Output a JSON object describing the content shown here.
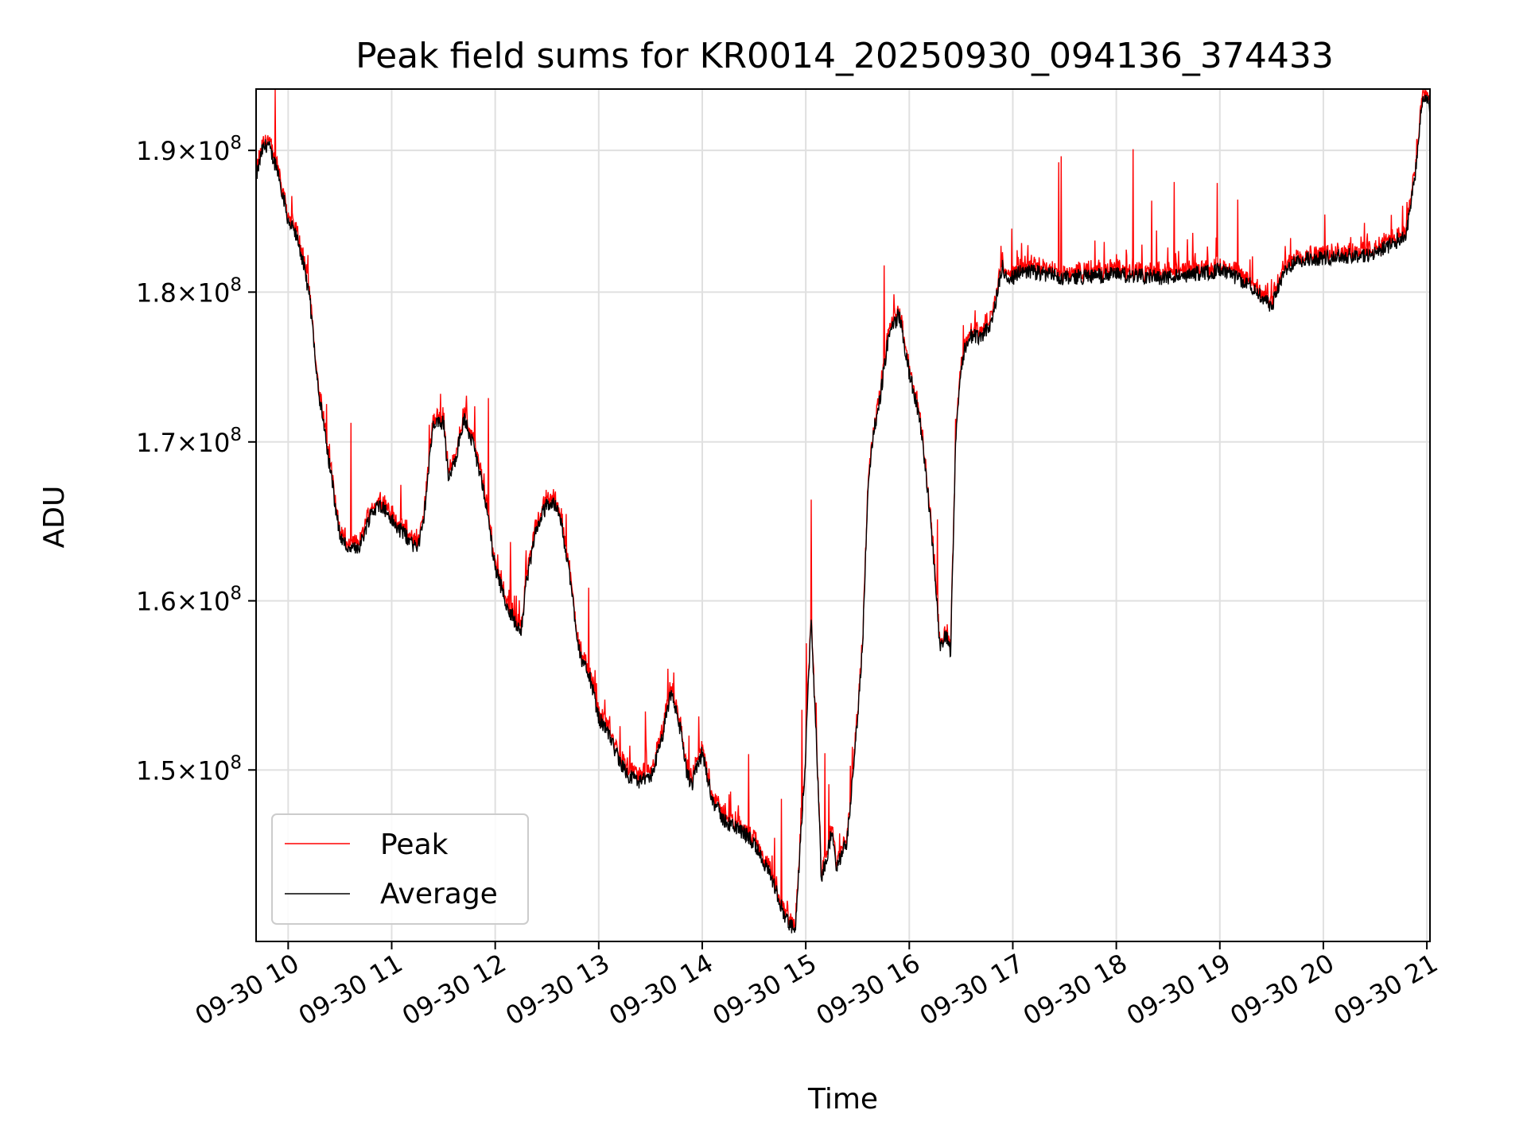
{
  "chart_data": {
    "type": "line",
    "title": "Peak field sums for KR0014_20250930_094136_374433",
    "xlabel": "Time",
    "ylabel": "ADU",
    "x_unit": "hours (2025-09-30, decimal hour of day)",
    "xlim": [
      9.69,
      21.03
    ],
    "ylim": [
      140500000,
      194500000
    ],
    "y_scale": "log",
    "grid": true,
    "legend_position": "lower-left",
    "x_ticks": [
      {
        "value": 10,
        "label": "09-30 10"
      },
      {
        "value": 11,
        "label": "09-30 11"
      },
      {
        "value": 12,
        "label": "09-30 12"
      },
      {
        "value": 13,
        "label": "09-30 13"
      },
      {
        "value": 14,
        "label": "09-30 14"
      },
      {
        "value": 15,
        "label": "09-30 15"
      },
      {
        "value": 16,
        "label": "09-30 16"
      },
      {
        "value": 17,
        "label": "09-30 17"
      },
      {
        "value": 18,
        "label": "09-30 18"
      },
      {
        "value": 19,
        "label": "09-30 19"
      },
      {
        "value": 20,
        "label": "09-30 20"
      },
      {
        "value": 21,
        "label": "09-30 21"
      }
    ],
    "y_ticks": [
      {
        "value": 150000000,
        "mantissa": "1.5",
        "exp": "8"
      },
      {
        "value": 160000000,
        "mantissa": "1.6",
        "exp": "8"
      },
      {
        "value": 170000000,
        "mantissa": "1.7",
        "exp": "8"
      },
      {
        "value": 180000000,
        "mantissa": "1.8",
        "exp": "8"
      },
      {
        "value": 190000000,
        "mantissa": "1.9",
        "exp": "8"
      }
    ],
    "y_tick_mult": "×10",
    "series": [
      {
        "name": "Peak",
        "color": "#ff0000"
      },
      {
        "name": "Average",
        "color": "#000000"
      }
    ],
    "average_keypoints_hours": [
      9.69,
      9.75,
      9.8,
      9.9,
      10.0,
      10.1,
      10.2,
      10.25,
      10.3,
      10.4,
      10.5,
      10.6,
      10.7,
      10.8,
      10.9,
      11.0,
      11.05,
      11.1,
      11.2,
      11.25,
      11.3,
      11.4,
      11.5,
      11.55,
      11.6,
      11.7,
      11.8,
      11.9,
      12.0,
      12.1,
      12.2,
      12.25,
      12.3,
      12.4,
      12.5,
      12.6,
      12.7,
      12.8,
      12.85,
      12.9,
      13.0,
      13.1,
      13.2,
      13.3,
      13.4,
      13.5,
      13.6,
      13.7,
      13.8,
      13.85,
      13.9,
      14.0,
      14.1,
      14.2,
      14.3,
      14.4,
      14.5,
      14.6,
      14.7,
      14.8,
      14.9,
      15.0,
      15.05,
      15.1,
      15.15,
      15.2,
      15.25,
      15.3,
      15.4,
      15.5,
      15.55,
      15.6,
      15.65,
      15.7,
      15.8,
      15.9,
      16.0,
      16.1,
      16.2,
      16.3,
      16.35,
      16.4,
      16.45,
      16.5,
      16.55,
      16.6,
      16.7,
      16.8,
      16.9,
      16.95,
      17.0,
      17.1,
      17.5,
      18.0,
      18.5,
      19.0,
      19.3,
      19.5,
      19.6,
      19.7,
      19.8,
      19.9,
      20.0,
      20.5,
      20.8,
      20.9,
      20.95,
      21.0,
      21.03
    ],
    "average_keypoints_adu": [
      188000000,
      190000000,
      190500000,
      188500000,
      185000000,
      183500000,
      180000000,
      176500000,
      173000000,
      168500000,
      164000000,
      163000000,
      163500000,
      165500000,
      166000000,
      165000000,
      164500000,
      164300000,
      163500000,
      163300000,
      164500000,
      171000000,
      171300000,
      167500000,
      168500000,
      171500000,
      169500000,
      166500000,
      162000000,
      160000000,
      158500000,
      158300000,
      161000000,
      164500000,
      166000000,
      166000000,
      162500000,
      157500000,
      156000000,
      155800000,
      153000000,
      152000000,
      150500000,
      149600000,
      149300000,
      149500000,
      151500000,
      154500000,
      152000000,
      149800000,
      149200000,
      151000000,
      148300000,
      147200000,
      146800000,
      146500000,
      145800000,
      144800000,
      143500000,
      141800000,
      141000000,
      151000000,
      159000000,
      152000000,
      144000000,
      145000000,
      146500000,
      144500000,
      146000000,
      153000000,
      157500000,
      167000000,
      170500000,
      172000000,
      177000000,
      178500000,
      174500000,
      171500000,
      165500000,
      157000000,
      158000000,
      157000000,
      170500000,
      175000000,
      176500000,
      177000000,
      177000000,
      178000000,
      182000000,
      180500000,
      181000000,
      181500000,
      181000000,
      181200000,
      181000000,
      181500000,
      180500000,
      179000000,
      181000000,
      182000000,
      182200000,
      182300000,
      182400000,
      182600000,
      184000000,
      189000000,
      193500000,
      194000000,
      193000000
    ]
  },
  "legend": {
    "peak_label": "Peak",
    "average_label": "Average"
  }
}
